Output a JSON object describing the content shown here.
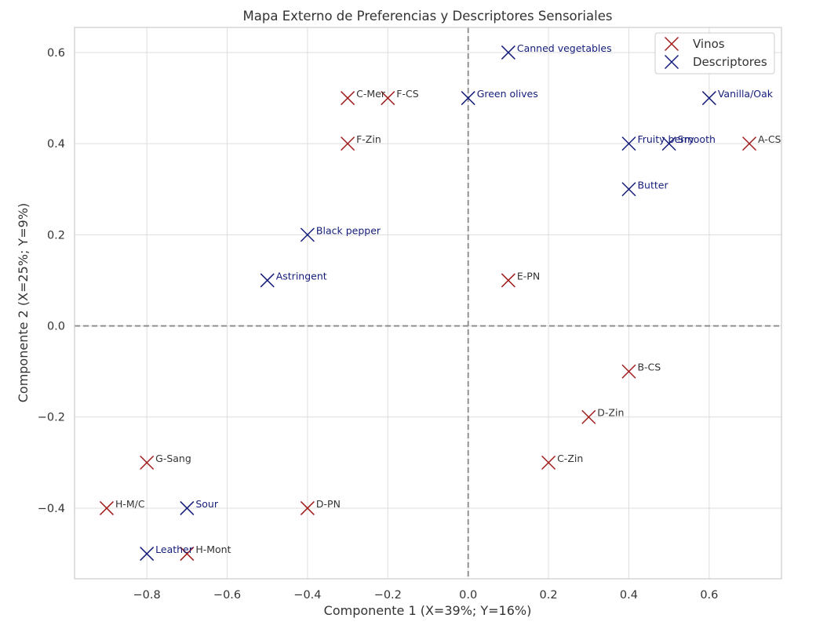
{
  "chart_data": {
    "type": "scatter",
    "title": "Mapa Externo de Preferencias y Descriptores Sensoriales",
    "xlabel": "Componente 1 (X=39%; Y=16%)",
    "ylabel": "Componente 2 (X=25%; Y=9%)",
    "xlim": [
      -0.98,
      0.78
    ],
    "ylim": [
      -0.555,
      0.655
    ],
    "xticks": [
      -0.8,
      -0.6,
      -0.4,
      -0.2,
      0.0,
      0.2,
      0.4,
      0.6
    ],
    "yticks": [
      -0.4,
      -0.2,
      0.0,
      0.2,
      0.4,
      0.6
    ],
    "xtick_labels": [
      "−0.8",
      "−0.6",
      "−0.4",
      "−0.2",
      "0.0",
      "0.2",
      "0.4",
      "0.6"
    ],
    "ytick_labels": [
      "−0.4",
      "−0.2",
      "0.0",
      "0.2",
      "0.4",
      "0.6"
    ],
    "grid": true,
    "reference_lines": {
      "x": 0.0,
      "y": 0.0,
      "style": "dashed",
      "color": "#888888"
    },
    "legend": {
      "position": "top-right"
    },
    "series": [
      {
        "name": "Vinos",
        "color": "#a01c1c",
        "label_color": "#333333",
        "marker": "x",
        "points": [
          {
            "label": "C-Mer",
            "x": -0.3,
            "y": 0.5
          },
          {
            "label": "F-CS",
            "x": -0.2,
            "y": 0.5
          },
          {
            "label": "F-Zin",
            "x": -0.3,
            "y": 0.4
          },
          {
            "label": "A-CS",
            "x": 0.7,
            "y": 0.4
          },
          {
            "label": "E-PN",
            "x": 0.1,
            "y": 0.1
          },
          {
            "label": "B-CS",
            "x": 0.4,
            "y": -0.1
          },
          {
            "label": "D-Zin",
            "x": 0.3,
            "y": -0.2
          },
          {
            "label": "C-Zin",
            "x": 0.2,
            "y": -0.3
          },
          {
            "label": "G-Sang",
            "x": -0.8,
            "y": -0.3
          },
          {
            "label": "H-M/C",
            "x": -0.9,
            "y": -0.4
          },
          {
            "label": "D-PN",
            "x": -0.4,
            "y": -0.4
          },
          {
            "label": "H-Mont",
            "x": -0.7,
            "y": -0.5
          }
        ]
      },
      {
        "name": "Descriptores",
        "color": "#141c7a",
        "label_color": "#141c7a",
        "marker": "x",
        "points": [
          {
            "label": "Canned vegetables",
            "x": 0.1,
            "y": 0.6
          },
          {
            "label": "Green olives",
            "x": 0.0,
            "y": 0.5
          },
          {
            "label": "Vanilla/Oak",
            "x": 0.6,
            "y": 0.5
          },
          {
            "label": "Fruity berry",
            "x": 0.4,
            "y": 0.4
          },
          {
            "label": "Smooth",
            "x": 0.5,
            "y": 0.4
          },
          {
            "label": "Butter",
            "x": 0.4,
            "y": 0.3
          },
          {
            "label": "Black pepper",
            "x": -0.4,
            "y": 0.2
          },
          {
            "label": "Astringent",
            "x": -0.5,
            "y": 0.1
          },
          {
            "label": "Sour",
            "x": -0.7,
            "y": -0.4
          },
          {
            "label": "Leather",
            "x": -0.8,
            "y": -0.5
          }
        ]
      }
    ]
  }
}
